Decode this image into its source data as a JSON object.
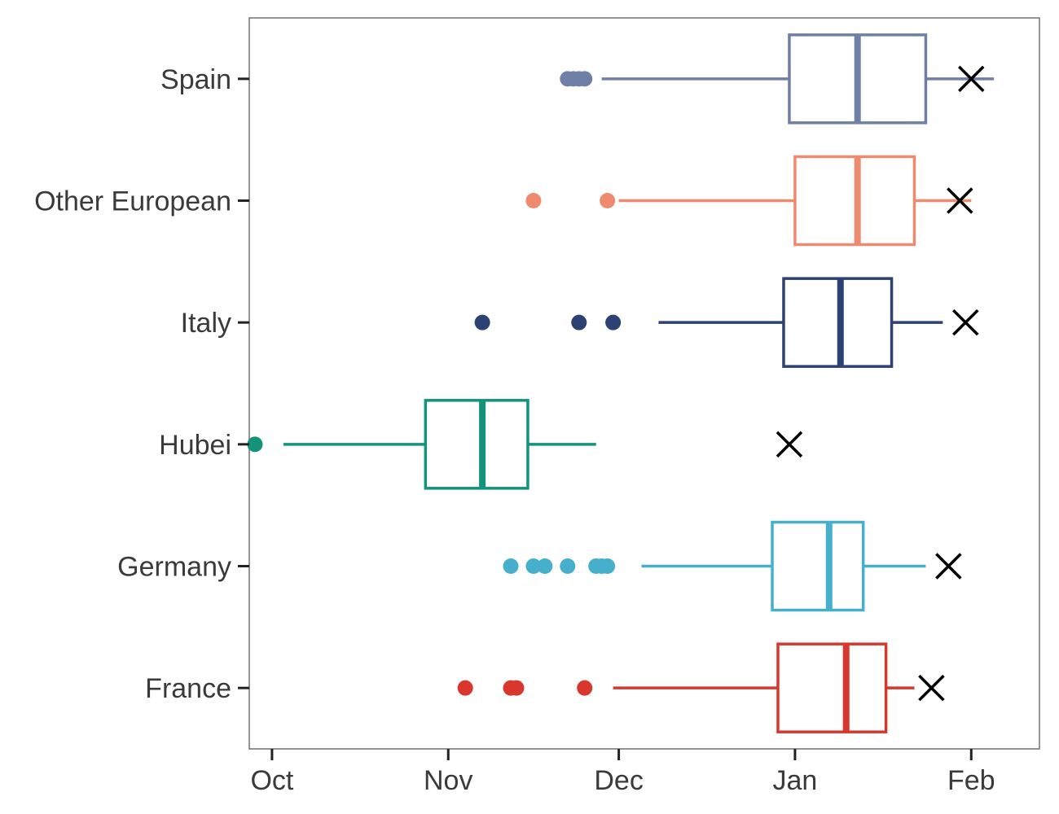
{
  "chart_data": {
    "type": "boxplot",
    "orientation": "horizontal",
    "title": "",
    "xlabel": "",
    "ylabel": "",
    "x_axis": {
      "ticks": [
        {
          "label": "Oct",
          "value": "2019-10-01"
        },
        {
          "label": "Nov",
          "value": "2019-11-01"
        },
        {
          "label": "Dec",
          "value": "2019-12-01"
        },
        {
          "label": "Jan",
          "value": "2020-01-01"
        },
        {
          "label": "Feb",
          "value": "2020-02-01"
        }
      ],
      "xlim": [
        "2019-09-27",
        "2020-02-13"
      ]
    },
    "grid": false,
    "legend": "none",
    "series": [
      {
        "category": "Spain",
        "color": "#6F7FA8",
        "whisker_low": "2019-11-28",
        "q1": "2019-12-31",
        "median": "2020-01-12",
        "q3": "2020-01-24",
        "whisker_high": "2020-02-05",
        "outliers": [
          "2019-11-22",
          "2019-11-23",
          "2019-11-24",
          "2019-11-25"
        ],
        "x_mark": "2020-02-01"
      },
      {
        "category": "Other European",
        "color": "#EF8A6F",
        "whisker_low": "2019-12-01",
        "q1": "2020-01-01",
        "median": "2020-01-12",
        "q3": "2020-01-22",
        "whisker_high": "2020-02-01",
        "outliers": [
          "2019-11-16",
          "2019-11-29"
        ],
        "x_mark": "2020-01-30"
      },
      {
        "category": "Italy",
        "color": "#2E4173",
        "whisker_low": "2019-12-08",
        "q1": "2019-12-30",
        "median": "2020-01-09",
        "q3": "2020-01-18",
        "whisker_high": "2020-01-27",
        "outliers": [
          "2019-11-07",
          "2019-11-24",
          "2019-11-30"
        ],
        "x_mark": "2020-01-31"
      },
      {
        "category": "Hubei",
        "color": "#12937A",
        "whisker_low": "2019-10-03",
        "q1": "2019-10-28",
        "median": "2019-11-07",
        "q3": "2019-11-15",
        "whisker_high": "2019-11-27",
        "outliers": [
          "2019-09-28"
        ],
        "x_mark": "2019-12-31"
      },
      {
        "category": "Germany",
        "color": "#45AFCC",
        "whisker_low": "2019-12-05",
        "q1": "2019-12-28",
        "median": "2020-01-07",
        "q3": "2020-01-13",
        "whisker_high": "2020-01-24",
        "outliers": [
          "2019-11-12",
          "2019-11-16",
          "2019-11-18",
          "2019-11-22",
          "2019-11-27",
          "2019-11-28",
          "2019-11-29"
        ],
        "x_mark": "2020-01-28"
      },
      {
        "category": "France",
        "color": "#D9372D",
        "whisker_low": "2019-11-30",
        "q1": "2019-12-29",
        "median": "2020-01-10",
        "q3": "2020-01-17",
        "whisker_high": "2020-01-22",
        "outliers": [
          "2019-11-04",
          "2019-11-12",
          "2019-11-13",
          "2019-11-25"
        ],
        "x_mark": "2020-01-25"
      }
    ],
    "y_order_top_to_bottom": [
      "Spain",
      "Other European",
      "Italy",
      "Hubei",
      "Germany",
      "France"
    ]
  }
}
